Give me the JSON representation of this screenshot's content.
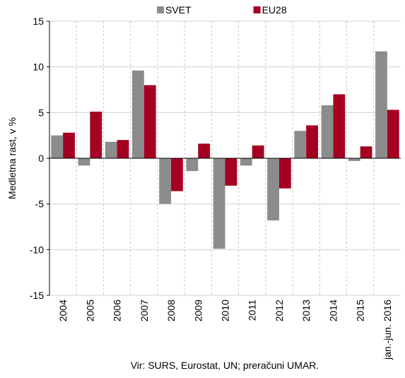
{
  "chart_data": {
    "type": "bar",
    "categories": [
      "2004",
      "2005",
      "2006",
      "2007",
      "2008",
      "2009",
      "2010",
      "2011",
      "2012",
      "2013",
      "2014",
      "2015",
      "jan.-jun. 2016"
    ],
    "series": [
      {
        "name": "SVET",
        "color": "#8c8c8c",
        "values": [
          2.5,
          -0.8,
          1.8,
          9.6,
          -5.0,
          -1.4,
          -9.9,
          -0.8,
          -6.8,
          3.0,
          5.8,
          -0.3,
          11.7
        ]
      },
      {
        "name": "EU28",
        "color": "#a50021",
        "values": [
          2.8,
          5.1,
          2.0,
          8.0,
          -3.6,
          1.6,
          -3.0,
          1.4,
          -3.3,
          3.6,
          7.0,
          1.3,
          5.3
        ]
      }
    ],
    "y_label": "Medletna rast, v %",
    "ylim": [
      -15,
      15
    ],
    "yticks": [
      -15,
      -10,
      -5,
      0,
      5,
      10,
      15
    ],
    "grid": true,
    "legend": "top",
    "source": "Vir: SURS, Eurostat, UN; preračuni UMAR."
  }
}
